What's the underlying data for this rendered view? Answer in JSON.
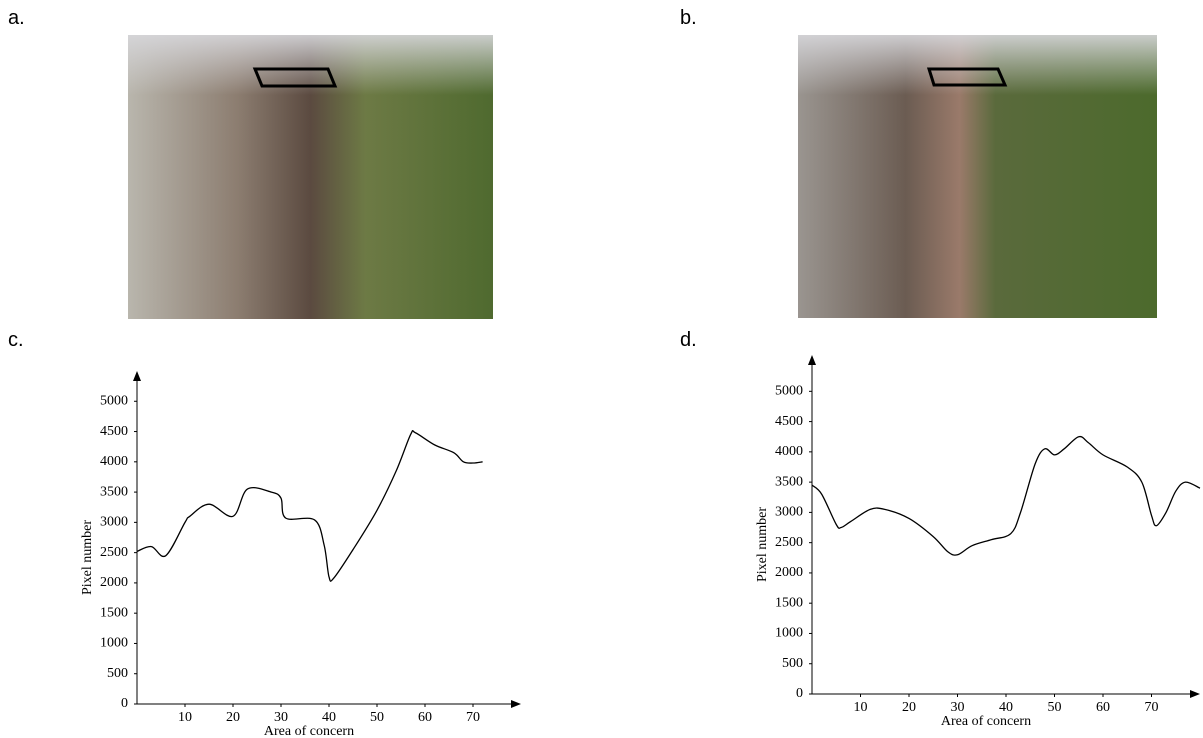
{
  "panel_labels": [
    "a.",
    "b.",
    "c.",
    "d."
  ],
  "chart_data": [
    {
      "type": "line",
      "xlabel": "Area of concern",
      "ylabel": "Pixel number",
      "xlim": [
        0,
        80
      ],
      "ylim": [
        0,
        5500
      ],
      "xticks": [
        10,
        20,
        30,
        40,
        50,
        60,
        70
      ],
      "yticks": [
        0,
        500,
        1000,
        1500,
        2000,
        2500,
        3000,
        3500,
        4000,
        4500,
        5000
      ],
      "grid": false,
      "series": [
        {
          "color": "#000000",
          "x": [
            0,
            3,
            6,
            10,
            11,
            15,
            20,
            23,
            28,
            30,
            31,
            37,
            39,
            40,
            41,
            45,
            50,
            54,
            57,
            58,
            62,
            66,
            68,
            70,
            72
          ],
          "values": [
            2520,
            2600,
            2450,
            3000,
            3100,
            3300,
            3100,
            3550,
            3500,
            3400,
            3070,
            3040,
            2620,
            2100,
            2080,
            2550,
            3200,
            3850,
            4450,
            4480,
            4280,
            4150,
            4000,
            3980,
            4000
          ]
        }
      ]
    },
    {
      "type": "line",
      "xlabel": "Area of concern",
      "ylabel": "Pixel number",
      "xlim": [
        0,
        80
      ],
      "ylim": [
        0,
        5600
      ],
      "xticks": [
        10,
        20,
        30,
        40,
        50,
        60,
        70
      ],
      "yticks": [
        0,
        500,
        1000,
        1500,
        2000,
        2500,
        3000,
        3500,
        4000,
        4500,
        5000
      ],
      "grid": false,
      "series": [
        {
          "color": "#000000",
          "x": [
            0,
            2,
            5,
            6,
            8,
            12,
            15,
            20,
            25,
            28,
            30,
            33,
            37,
            41,
            43,
            46,
            48,
            50,
            52,
            55,
            57,
            60,
            65,
            68,
            70,
            71,
            73,
            75,
            77,
            80
          ],
          "values": [
            3450,
            3300,
            2800,
            2750,
            2850,
            3050,
            3050,
            2900,
            2600,
            2350,
            2300,
            2450,
            2550,
            2650,
            3000,
            3800,
            4050,
            3950,
            4050,
            4250,
            4150,
            3950,
            3750,
            3500,
            2950,
            2780,
            3000,
            3350,
            3500,
            3400
          ]
        }
      ]
    }
  ]
}
